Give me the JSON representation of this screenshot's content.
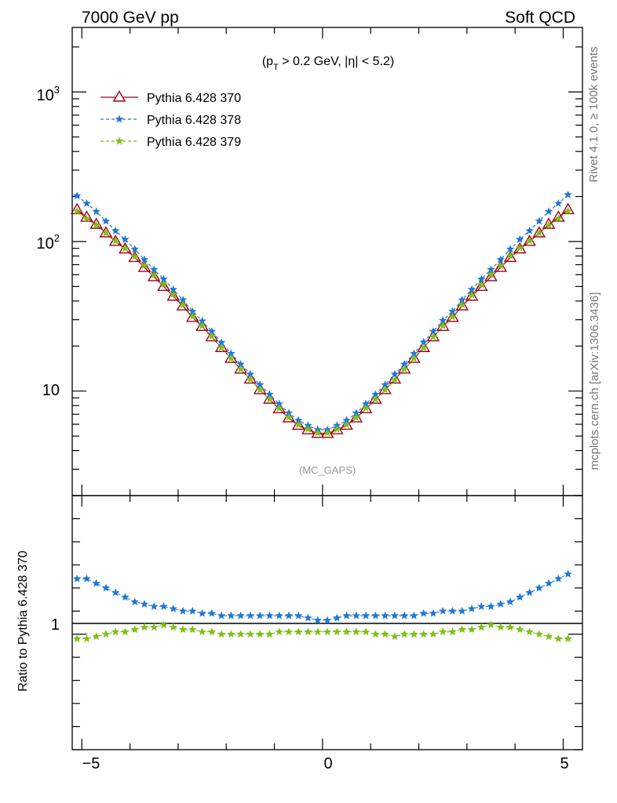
{
  "header": {
    "left": "7000 GeV pp",
    "right": "Soft QCD"
  },
  "side_labels": {
    "rivet": "Rivet 4.1.0, ≥ 100k events",
    "mcplots": "mcplots.cern.ch [arXiv:1306.3436]"
  },
  "chart_data": {
    "type": "scatter",
    "cut_label": "(p_T > 0.2 GeV, |η| < 5.2)",
    "analysis_tag": "(MC_GAPS)",
    "xlabel": "",
    "ylabel_main": "",
    "ylabel_ratio": "Ratio to Pythia 6.428 370",
    "xlim": [
      -5.2,
      5.4
    ],
    "ylim_main": [
      2.0,
      2700
    ],
    "yscale_main": "log",
    "ylim_ratio": [
      0.5,
      1.6
    ],
    "x_ticks": [
      -5,
      0,
      5
    ],
    "x_tick_labels": [
      "−5",
      "0",
      "5"
    ],
    "y_ticks_main_labels": [
      "10",
      "10^2",
      "10^3"
    ],
    "ratio_tick_label": "1",
    "legend": {
      "position": "top-left"
    },
    "x": [
      -5.1,
      -4.9,
      -4.7,
      -4.5,
      -4.3,
      -4.1,
      -3.9,
      -3.7,
      -3.5,
      -3.3,
      -3.1,
      -2.9,
      -2.7,
      -2.5,
      -2.3,
      -2.1,
      -1.9,
      -1.7,
      -1.5,
      -1.3,
      -1.1,
      -0.9,
      -0.7,
      -0.5,
      -0.3,
      -0.1,
      0.1,
      0.3,
      0.5,
      0.7,
      0.9,
      1.1,
      1.3,
      1.5,
      1.7,
      1.9,
      2.1,
      2.3,
      2.5,
      2.7,
      2.9,
      3.1,
      3.3,
      3.5,
      3.7,
      3.9,
      4.1,
      4.3,
      4.5,
      4.7,
      4.9,
      5.1
    ],
    "series": [
      {
        "name": "Pythia 6.428 370",
        "color": "#a0001e",
        "marker": "triangle",
        "line": "solid",
        "values": [
          163,
          145,
          130,
          114,
          100,
          89,
          78,
          67,
          58,
          50,
          43,
          37,
          31,
          27,
          23,
          19.5,
          16.5,
          14,
          12,
          10.2,
          8.8,
          7.6,
          6.6,
          5.9,
          5.5,
          5.2,
          5.2,
          5.5,
          5.9,
          6.6,
          7.6,
          8.8,
          10.2,
          12,
          14,
          16.5,
          19.5,
          23,
          27,
          31,
          37,
          43,
          50,
          58,
          67,
          78,
          89,
          100,
          114,
          130,
          145,
          163
        ]
      },
      {
        "name": "Pythia 6.428 378",
        "color": "#1f78d4",
        "marker": "star",
        "line": "dashed",
        "ratio": [
          1.24,
          1.24,
          1.22,
          1.2,
          1.18,
          1.16,
          1.14,
          1.13,
          1.12,
          1.12,
          1.11,
          1.1,
          1.1,
          1.09,
          1.09,
          1.08,
          1.08,
          1.08,
          1.08,
          1.08,
          1.08,
          1.08,
          1.08,
          1.08,
          1.07,
          1.06,
          1.06,
          1.07,
          1.08,
          1.08,
          1.08,
          1.08,
          1.08,
          1.08,
          1.08,
          1.08,
          1.09,
          1.09,
          1.1,
          1.1,
          1.1,
          1.11,
          1.12,
          1.12,
          1.13,
          1.14,
          1.16,
          1.18,
          1.2,
          1.22,
          1.24,
          1.26
        ]
      },
      {
        "name": "Pythia 6.428 379",
        "color": "#7fbf1a",
        "marker": "star",
        "line": "dashed",
        "ratio": [
          0.98,
          0.98,
          0.99,
          1.0,
          1.01,
          1.01,
          1.02,
          1.03,
          1.03,
          1.04,
          1.03,
          1.02,
          1.02,
          1.01,
          1.01,
          1.0,
          1.0,
          1.0,
          1.0,
          1.0,
          1.0,
          1.01,
          1.01,
          1.01,
          1.01,
          1.01,
          1.01,
          1.01,
          1.01,
          1.01,
          1.01,
          1.0,
          1.0,
          0.99,
          1.0,
          1.0,
          1.0,
          1.0,
          1.01,
          1.01,
          1.02,
          1.02,
          1.03,
          1.04,
          1.03,
          1.03,
          1.02,
          1.01,
          1.0,
          0.99,
          0.98,
          0.98
        ]
      }
    ]
  }
}
